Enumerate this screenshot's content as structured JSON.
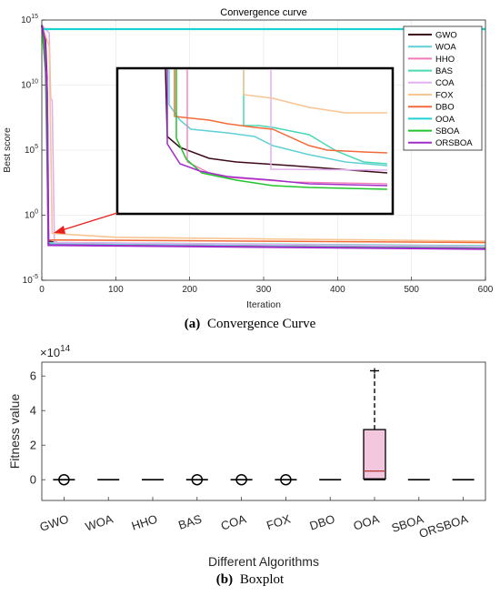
{
  "chart_data": [
    {
      "type": "line",
      "title": "Convergence curve",
      "xlabel": "Iteration",
      "ylabel": "Best score",
      "xlim": [
        0,
        600
      ],
      "xticks": [
        "0",
        "100",
        "200",
        "300",
        "400",
        "500",
        "600"
      ],
      "yscale": "log",
      "ylim_exp": [
        -5,
        15
      ],
      "yticks": [
        {
          "base": "10",
          "exp": "-5",
          "e": -5
        },
        {
          "base": "10",
          "exp": "0",
          "e": 0
        },
        {
          "base": "10",
          "exp": "5",
          "e": 5
        },
        {
          "base": "10",
          "exp": "10",
          "e": 10
        },
        {
          "base": "10",
          "exp": "15",
          "e": 15
        }
      ],
      "grid": true,
      "legend_position": "top-right",
      "series": [
        {
          "name": "GWO",
          "color": "#3d0a1a",
          "points": [
            [
              0,
              14.6
            ],
            [
              5,
              13.5
            ],
            [
              7,
              10.5
            ],
            [
              9,
              -2.0
            ],
            [
              30,
              -2.2
            ],
            [
              600,
              -2.45
            ]
          ]
        },
        {
          "name": "WOA",
          "color": "#5fd0d6",
          "points": [
            [
              0,
              14.6
            ],
            [
              5,
              12.0
            ],
            [
              8,
              7.0
            ],
            [
              9,
              -2.2
            ],
            [
              600,
              -2.5
            ]
          ]
        },
        {
          "name": "HHO",
          "color": "#f07ab8",
          "points": [
            [
              0,
              14.6
            ],
            [
              6,
              11.0
            ],
            [
              9,
              -2.3
            ],
            [
              600,
              -2.55
            ]
          ]
        },
        {
          "name": "BAS",
          "color": "#49d9b4",
          "points": [
            [
              0,
              14.6
            ],
            [
              4,
              12.5
            ],
            [
              7,
              10.0
            ],
            [
              8,
              6.4
            ],
            [
              9,
              -2.1
            ],
            [
              600,
              -2.35
            ]
          ]
        },
        {
          "name": "COA",
          "color": "#e2b0f0",
          "points": [
            [
              0,
              14.6
            ],
            [
              10,
              14.0
            ],
            [
              12,
              9.0
            ],
            [
              14,
              8.8
            ],
            [
              17,
              -2.1
            ],
            [
              600,
              -2.4
            ]
          ]
        },
        {
          "name": "FOX",
          "color": "#f8c491",
          "points": [
            [
              0,
              14.6
            ],
            [
              10,
              13.0
            ],
            [
              14,
              -1.4
            ],
            [
              100,
              -1.7
            ],
            [
              600,
              -2.0
            ]
          ]
        },
        {
          "name": "DBO",
          "color": "#f26a3a",
          "points": [
            [
              0,
              14.6
            ],
            [
              6,
              10.5
            ],
            [
              9,
              -1.9
            ],
            [
              600,
              -2.1
            ]
          ]
        },
        {
          "name": "OOA",
          "color": "#1dd3cf",
          "points": [
            [
              0,
              14.3
            ],
            [
              600,
              14.3
            ]
          ]
        },
        {
          "name": "SBOA",
          "color": "#22c42e",
          "points": [
            [
              0,
              14.6
            ],
            [
              5,
              11.0
            ],
            [
              9,
              -2.3
            ],
            [
              600,
              -2.55
            ]
          ]
        },
        {
          "name": "ORSBOA",
          "color": "#a22cc9",
          "points": [
            [
              0,
              14.6
            ],
            [
              4,
              13.5
            ],
            [
              7,
              9.5
            ],
            [
              9,
              -2.3
            ],
            [
              600,
              -2.6
            ]
          ]
        }
      ]
    },
    {
      "type": "box",
      "xlabel": "Different Algorithms",
      "ylabel": "Fitness value",
      "exponent_base": "10",
      "exponent_power": "14",
      "ylim": [
        -1.2,
        6.8
      ],
      "yticks": [
        "0",
        "2",
        "4",
        "6"
      ],
      "categories": [
        "GWO",
        "WOA",
        "HHO",
        "BAS",
        "COA",
        "FOX",
        "DBO",
        "OOA",
        "SBOA",
        "ORSBOA"
      ],
      "boxes": [
        {
          "name": "GWO",
          "outlier": 0
        },
        {
          "name": "WOA"
        },
        {
          "name": "HHO"
        },
        {
          "name": "BAS",
          "outlier": 0
        },
        {
          "name": "COA",
          "outlier": 0
        },
        {
          "name": "FOX",
          "outlier": 0
        },
        {
          "name": "DBO"
        },
        {
          "name": "OOA",
          "q1": 0.05,
          "median": 0.5,
          "q3": 2.9,
          "whisker_low": 0,
          "whisker_high": 6.3,
          "fill": "#f3c7dd"
        },
        {
          "name": "SBOA"
        },
        {
          "name": "ORSBOA"
        }
      ]
    }
  ],
  "captions": {
    "a_label": "(a)",
    "a_text": "Convergence Curve",
    "b_label": "(b)",
    "b_text": "Boxplot"
  }
}
